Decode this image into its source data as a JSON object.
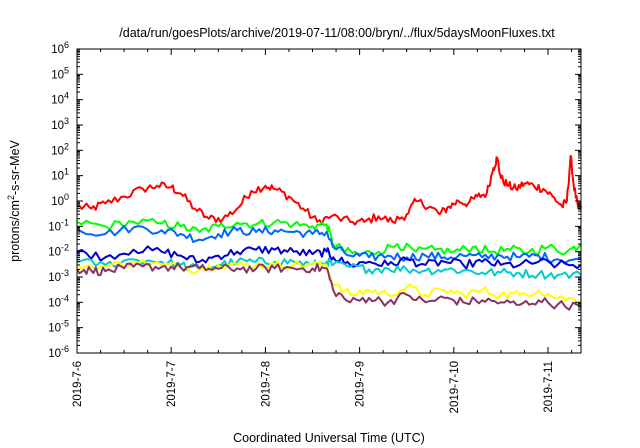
{
  "chart_data": {
    "type": "line",
    "title": "/data/run/goesPlots/archive/2019-07-11/08:00/bryn/../flux/5daysMoonFluxes.txt",
    "xlabel": "Coordinated Universal Time (UTC)",
    "ylabel": "protons/cm²-s-sr-MeV",
    "ylabel_parts": {
      "pre": "protons/cm",
      "sup": "2",
      "post": "-s-sr-MeV"
    },
    "yscale": "log",
    "ylim": [
      1e-06,
      1000000.0
    ],
    "xlim_days": [
      0,
      5.35
    ],
    "x_tick_labels": [
      "2019-7-6",
      "2019-7-7",
      "2019-7-8",
      "2019-7-9",
      "2019-7-10",
      "2019-7-11"
    ],
    "y_tick_labels": [
      {
        "base": "10",
        "exp": "-6"
      },
      {
        "base": "10",
        "exp": "-5"
      },
      {
        "base": "10",
        "exp": "-4"
      },
      {
        "base": "10",
        "exp": "-3"
      },
      {
        "base": "10",
        "exp": "-2"
      },
      {
        "base": "10",
        "exp": "-1"
      },
      {
        "base": "10",
        "exp": "0"
      },
      {
        "base": "10",
        "exp": "1"
      },
      {
        "base": "10",
        "exp": "2"
      },
      {
        "base": "10",
        "exp": "3"
      },
      {
        "base": "10",
        "exp": "4"
      },
      {
        "base": "10",
        "exp": "5"
      },
      {
        "base": "10",
        "exp": "6"
      }
    ],
    "grid": false,
    "series": [
      {
        "color": "#ff0000",
        "points": [
          [
            0.0,
            0.6
          ],
          [
            0.15,
            0.5
          ],
          [
            0.3,
            0.8
          ],
          [
            0.5,
            1.5
          ],
          [
            0.7,
            3.0
          ],
          [
            0.85,
            4.0
          ],
          [
            1.0,
            3.5
          ],
          [
            1.1,
            2.0
          ],
          [
            1.25,
            0.5
          ],
          [
            1.4,
            0.2
          ],
          [
            1.55,
            0.2
          ],
          [
            1.7,
            0.5
          ],
          [
            1.85,
            2.5
          ],
          [
            2.0,
            4.0
          ],
          [
            2.1,
            3.0
          ],
          [
            2.25,
            1.5
          ],
          [
            2.4,
            0.5
          ],
          [
            2.55,
            0.15
          ],
          [
            2.7,
            0.25
          ],
          [
            2.9,
            0.15
          ],
          [
            3.05,
            0.15
          ],
          [
            3.2,
            0.25
          ],
          [
            3.35,
            0.15
          ],
          [
            3.5,
            0.3
          ],
          [
            3.6,
            1.0
          ],
          [
            3.75,
            0.6
          ],
          [
            3.85,
            0.3
          ],
          [
            3.95,
            0.6
          ],
          [
            4.05,
            1.0
          ],
          [
            4.15,
            0.8
          ],
          [
            4.25,
            1.5
          ],
          [
            4.35,
            2.0
          ],
          [
            4.42,
            20
          ],
          [
            4.46,
            50
          ],
          [
            4.5,
            8
          ],
          [
            4.58,
            4
          ],
          [
            4.66,
            3
          ],
          [
            4.75,
            5
          ],
          [
            4.85,
            4
          ],
          [
            4.95,
            3
          ],
          [
            5.05,
            1.5
          ],
          [
            5.15,
            0.6
          ],
          [
            5.2,
            1.0
          ],
          [
            5.24,
            60
          ],
          [
            5.27,
            5
          ],
          [
            5.32,
            0.5
          ],
          [
            5.35,
            0.5
          ]
        ]
      },
      {
        "color": "#00ff00",
        "points": [
          [
            0.0,
            0.15
          ],
          [
            0.3,
            0.1
          ],
          [
            0.6,
            0.15
          ],
          [
            0.9,
            0.13
          ],
          [
            1.1,
            0.1
          ],
          [
            1.3,
            0.06
          ],
          [
            1.5,
            0.1
          ],
          [
            1.7,
            0.14
          ],
          [
            1.9,
            0.12
          ],
          [
            2.1,
            0.15
          ],
          [
            2.3,
            0.12
          ],
          [
            2.5,
            0.1
          ],
          [
            2.65,
            0.12
          ],
          [
            2.72,
            0.02
          ],
          [
            2.85,
            0.01
          ],
          [
            3.0,
            0.008
          ],
          [
            3.2,
            0.01
          ],
          [
            3.4,
            0.02
          ],
          [
            3.6,
            0.01
          ],
          [
            3.8,
            0.012
          ],
          [
            4.0,
            0.01
          ],
          [
            4.2,
            0.015
          ],
          [
            4.4,
            0.01
          ],
          [
            4.6,
            0.012
          ],
          [
            4.8,
            0.01
          ],
          [
            5.0,
            0.015
          ],
          [
            5.2,
            0.01
          ],
          [
            5.35,
            0.02
          ]
        ]
      },
      {
        "color": "#0066ff",
        "points": [
          [
            0.0,
            0.08
          ],
          [
            0.3,
            0.05
          ],
          [
            0.6,
            0.09
          ],
          [
            0.9,
            0.07
          ],
          [
            1.1,
            0.05
          ],
          [
            1.3,
            0.03
          ],
          [
            1.5,
            0.05
          ],
          [
            1.7,
            0.07
          ],
          [
            1.9,
            0.06
          ],
          [
            2.1,
            0.07
          ],
          [
            2.3,
            0.06
          ],
          [
            2.5,
            0.05
          ],
          [
            2.65,
            0.06
          ],
          [
            2.72,
            0.015
          ],
          [
            2.9,
            0.007
          ],
          [
            3.1,
            0.006
          ],
          [
            3.3,
            0.007
          ],
          [
            3.5,
            0.006
          ],
          [
            3.7,
            0.007
          ],
          [
            3.9,
            0.006
          ],
          [
            4.1,
            0.007
          ],
          [
            4.3,
            0.006
          ],
          [
            4.5,
            0.007
          ],
          [
            4.7,
            0.006
          ],
          [
            4.9,
            0.007
          ],
          [
            5.1,
            0.005
          ],
          [
            5.35,
            0.005
          ]
        ]
      },
      {
        "color": "#0000cc",
        "points": [
          [
            0.0,
            0.01
          ],
          [
            0.3,
            0.006
          ],
          [
            0.6,
            0.012
          ],
          [
            0.9,
            0.01
          ],
          [
            1.1,
            0.007
          ],
          [
            1.3,
            0.004
          ],
          [
            1.5,
            0.007
          ],
          [
            1.7,
            0.01
          ],
          [
            1.9,
            0.012
          ],
          [
            2.1,
            0.012
          ],
          [
            2.3,
            0.01
          ],
          [
            2.5,
            0.008
          ],
          [
            2.65,
            0.01
          ],
          [
            2.72,
            0.006
          ],
          [
            2.9,
            0.003
          ],
          [
            3.1,
            0.004
          ],
          [
            3.3,
            0.003
          ],
          [
            3.5,
            0.005
          ],
          [
            3.7,
            0.003
          ],
          [
            3.9,
            0.004
          ],
          [
            4.1,
            0.003
          ],
          [
            4.3,
            0.004
          ],
          [
            4.5,
            0.003
          ],
          [
            4.7,
            0.003
          ],
          [
            4.9,
            0.004
          ],
          [
            5.1,
            0.003
          ],
          [
            5.35,
            0.003
          ]
        ]
      },
      {
        "color": "#00cccc",
        "points": [
          [
            0.0,
            0.004
          ],
          [
            0.3,
            0.003
          ],
          [
            0.6,
            0.005
          ],
          [
            0.9,
            0.004
          ],
          [
            1.1,
            0.003
          ],
          [
            1.3,
            0.002
          ],
          [
            1.5,
            0.003
          ],
          [
            1.7,
            0.004
          ],
          [
            1.9,
            0.004
          ],
          [
            2.1,
            0.004
          ],
          [
            2.3,
            0.004
          ],
          [
            2.5,
            0.003
          ],
          [
            2.65,
            0.004
          ],
          [
            2.72,
            0.003
          ],
          [
            2.9,
            0.0025
          ],
          [
            3.1,
            0.002
          ],
          [
            3.3,
            0.0022
          ],
          [
            3.5,
            0.002
          ],
          [
            3.7,
            0.0018
          ],
          [
            3.9,
            0.002
          ],
          [
            4.1,
            0.0018
          ],
          [
            4.3,
            0.0015
          ],
          [
            4.5,
            0.0015
          ],
          [
            4.7,
            0.0014
          ],
          [
            4.9,
            0.0013
          ],
          [
            5.1,
            0.0012
          ],
          [
            5.35,
            0.0012
          ]
        ]
      },
      {
        "color": "#ffff00",
        "points": [
          [
            0.0,
            0.003
          ],
          [
            0.3,
            0.0025
          ],
          [
            0.6,
            0.004
          ],
          [
            0.9,
            0.003
          ],
          [
            1.1,
            0.0025
          ],
          [
            1.3,
            0.002
          ],
          [
            1.5,
            0.003
          ],
          [
            1.7,
            0.003
          ],
          [
            1.9,
            0.003
          ],
          [
            2.1,
            0.003
          ],
          [
            2.3,
            0.003
          ],
          [
            2.5,
            0.003
          ],
          [
            2.65,
            0.003
          ],
          [
            2.72,
            0.0005
          ],
          [
            2.9,
            0.0002
          ],
          [
            3.1,
            0.0003
          ],
          [
            3.3,
            0.0002
          ],
          [
            3.5,
            0.0004
          ],
          [
            3.7,
            0.0002
          ],
          [
            3.9,
            0.0003
          ],
          [
            4.1,
            0.0002
          ],
          [
            4.3,
            0.0003
          ],
          [
            4.5,
            0.0002
          ],
          [
            4.7,
            0.0002
          ],
          [
            4.9,
            0.0003
          ],
          [
            5.1,
            0.00015
          ],
          [
            5.35,
            0.00012
          ]
        ]
      },
      {
        "color": "#883366",
        "points": [
          [
            0.0,
            0.002
          ],
          [
            0.15,
            0.0018
          ],
          [
            0.3,
            0.0017
          ],
          [
            0.5,
            0.0022
          ],
          [
            0.7,
            0.0026
          ],
          [
            0.9,
            0.0025
          ],
          [
            1.1,
            0.0024
          ],
          [
            1.3,
            0.0022
          ],
          [
            1.5,
            0.0021
          ],
          [
            1.7,
            0.0022
          ],
          [
            1.9,
            0.0021
          ],
          [
            2.1,
            0.0022
          ],
          [
            2.3,
            0.0022
          ],
          [
            2.5,
            0.0022
          ],
          [
            2.65,
            0.0022
          ],
          [
            2.72,
            0.0003
          ],
          [
            2.9,
            0.0001
          ],
          [
            3.1,
            0.00015
          ],
          [
            3.3,
            0.0001
          ],
          [
            3.5,
            0.0002
          ],
          [
            3.7,
            0.0001
          ],
          [
            3.9,
            0.00015
          ],
          [
            4.1,
            0.0001
          ],
          [
            4.3,
            0.00012
          ],
          [
            4.5,
            0.0001
          ],
          [
            4.7,
            8e-05
          ],
          [
            4.9,
            0.00012
          ],
          [
            5.1,
            8e-05
          ],
          [
            5.35,
            7e-05
          ]
        ]
      }
    ]
  }
}
